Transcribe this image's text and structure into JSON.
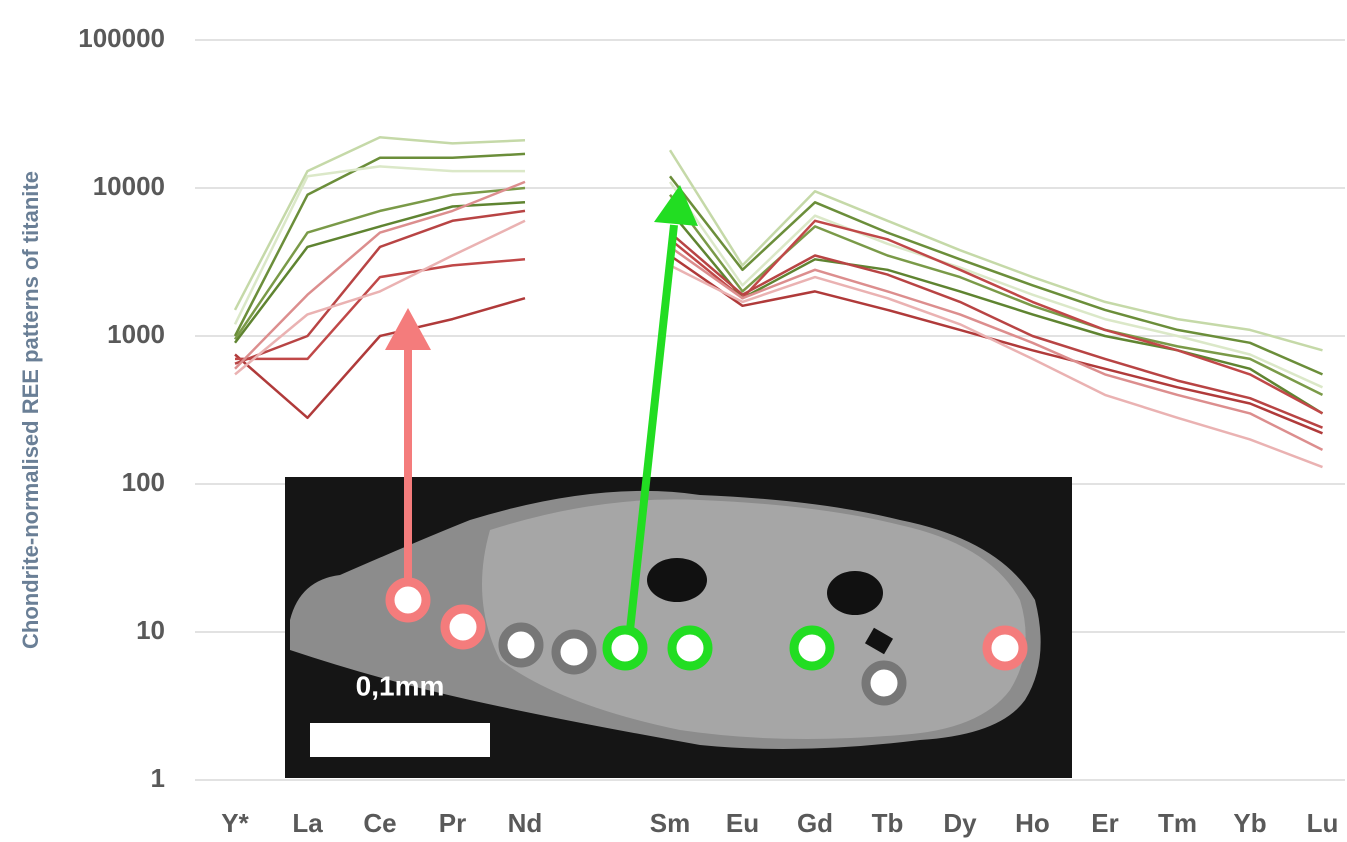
{
  "chart_data": {
    "type": "line",
    "log_scale": true,
    "grid": true,
    "y_label": "Chondrite-normalised REE patterns of titanite",
    "annotation": "0,1mm",
    "categories": [
      "Y*",
      "La",
      "Ce",
      "Pr",
      "Nd",
      null,
      "Sm",
      "Eu",
      "Gd",
      "Tb",
      "Dy",
      "Ho",
      "Er",
      "Tm",
      "Yb",
      "Lu"
    ],
    "ylim": [
      1,
      100000
    ],
    "yticks": [
      1,
      10,
      100,
      1000,
      10000,
      100000
    ],
    "series": [
      {
        "color": "#c5d9a8",
        "values": [
          1500,
          13000,
          22000,
          20000,
          21000,
          null,
          18000,
          3000,
          9500,
          6000,
          3800,
          2500,
          1700,
          1300,
          1100,
          800
        ]
      },
      {
        "color": "#6b8e3a",
        "values": [
          1000,
          9000,
          16000,
          16000,
          17000,
          null,
          12000,
          2800,
          8000,
          5000,
          3300,
          2200,
          1500,
          1100,
          900,
          550
        ]
      },
      {
        "color": "#7a9a48",
        "values": [
          950,
          5000,
          7000,
          9000,
          10000,
          null,
          9000,
          2000,
          5500,
          3500,
          2500,
          1600,
          1100,
          850,
          700,
          400
        ]
      },
      {
        "color": "#dbe8c8",
        "values": [
          1200,
          12000,
          14000,
          13000,
          13000,
          null,
          11000,
          2200,
          6500,
          4200,
          2900,
          1900,
          1300,
          1000,
          750,
          450
        ]
      },
      {
        "color": "#5f8431",
        "values": [
          900,
          4000,
          5500,
          7500,
          8000,
          null,
          7000,
          1800,
          3300,
          2800,
          2000,
          1400,
          1000,
          800,
          600,
          300
        ]
      },
      {
        "color": "#b03a3a",
        "values": [
          750,
          280,
          1000,
          1300,
          1800,
          null,
          3500,
          1600,
          2000,
          1500,
          1100,
          800,
          600,
          450,
          350,
          220
        ]
      },
      {
        "color": "#c04848",
        "values": [
          700,
          700,
          2500,
          3000,
          3300,
          null,
          4500,
          1800,
          6000,
          4500,
          2800,
          1700,
          1100,
          800,
          550,
          300
        ]
      },
      {
        "color": "#b84444",
        "values": [
          650,
          1000,
          4000,
          6000,
          7000,
          null,
          5000,
          1900,
          3500,
          2600,
          1700,
          1000,
          700,
          500,
          380,
          240
        ]
      },
      {
        "color": "#eab2b2",
        "values": [
          550,
          1400,
          2000,
          3500,
          6000,
          null,
          3000,
          1700,
          2500,
          1800,
          1200,
          700,
          400,
          280,
          200,
          130
        ]
      },
      {
        "color": "#dc8e8e",
        "values": [
          600,
          1900,
          5000,
          7000,
          11000,
          null,
          4000,
          1800,
          2800,
          2000,
          1400,
          900,
          550,
          400,
          300,
          170
        ]
      }
    ]
  }
}
